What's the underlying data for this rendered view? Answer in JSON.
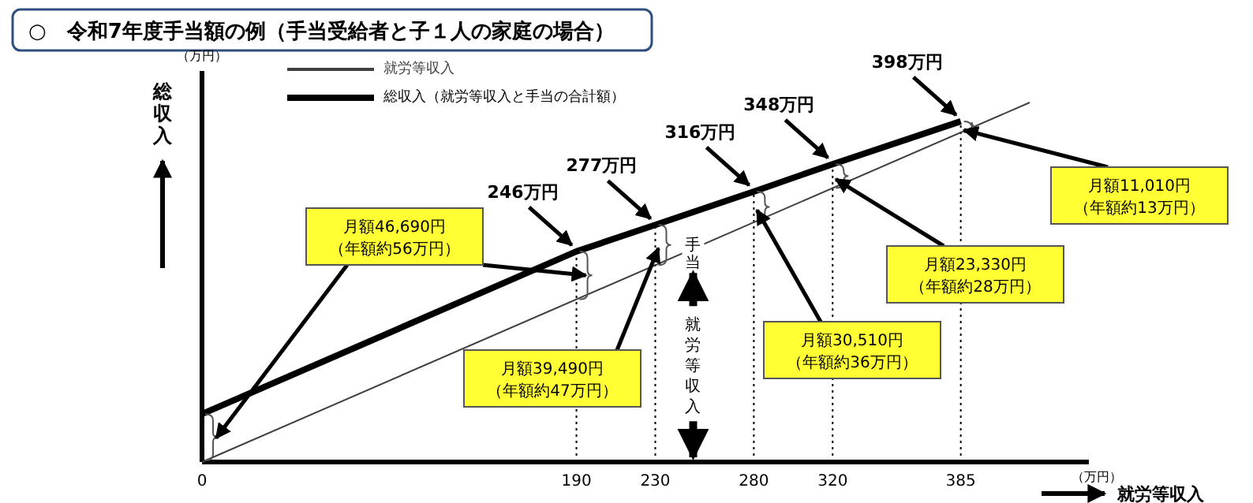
{
  "chart_data": {
    "type": "line",
    "title": "○　令和7年度手当額の例（手当受給者と子１人の家庭の場合）",
    "xlabel": "就労等収入",
    "ylabel": "総収入",
    "xlim": [
      0,
      450
    ],
    "xticks": [
      0,
      190,
      230,
      280,
      320,
      385
    ],
    "tick_labels": "x",
    "grid": false,
    "legend": "top left",
    "marker": "none",
    "series": [
      {
        "name": "就労等収入",
        "color": "#404040",
        "x": [
          0,
          420
        ],
        "values": [
          0,
          420
        ],
        "line_style": "solid"
      },
      {
        "name": "総収入（就労等収入と手当の合計額）",
        "color": "#000000",
        "x": [
          0,
          190,
          230,
          280,
          320,
          385
        ],
        "values": [
          56,
          246,
          277,
          316,
          348,
          398
        ],
        "value_labels": [
          null,
          "246万円",
          "277万円",
          "316万円",
          "348万円",
          "398万円"
        ],
        "line_style": "solid"
      }
    ],
    "ref_lines": [
      {
        "axis": "x",
        "value": 190,
        "line_style": "dotted"
      },
      {
        "axis": "x",
        "value": 230,
        "line_style": "dotted"
      },
      {
        "axis": "x",
        "value": 280,
        "line_style": "dotted"
      },
      {
        "axis": "x",
        "value": 320,
        "line_style": "dotted"
      },
      {
        "axis": "x",
        "value": 385,
        "line_style": "dotted"
      }
    ],
    "annotations": [
      "月額46,690円（年額約56万円）",
      {
        "text": "月額39,490円（年額約47万円）",
        "x": 230,
        "y": 253.5
      },
      {
        "text": "月額30,510円（年額約36万円）",
        "x": 280,
        "y": 298
      },
      {
        "text": "月額23,330円（年額約28万円）",
        "x": 320,
        "y": 334
      },
      {
        "text": "月額11,010円（年額約13万円）",
        "x": 385,
        "y": 391.5
      },
      "手当",
      "就労等収入",
      "（万円）",
      "（万円）"
    ]
  }
}
